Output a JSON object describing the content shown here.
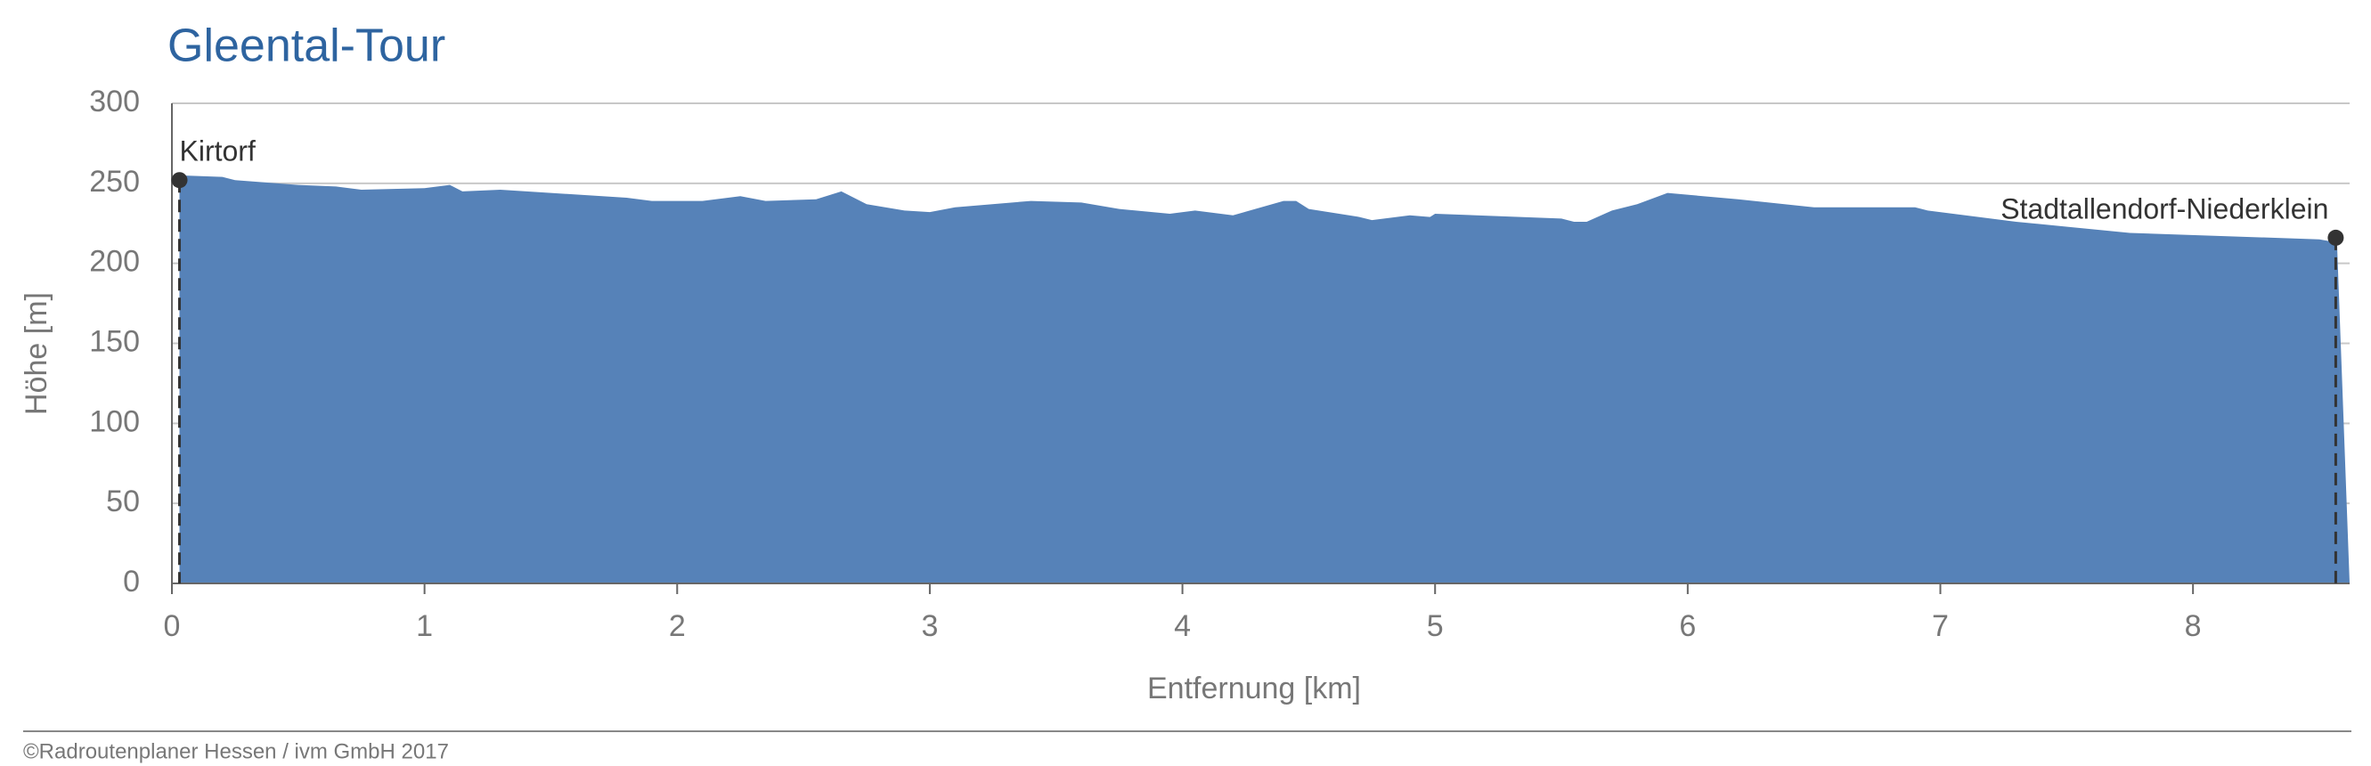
{
  "chart_data": {
    "type": "area",
    "title": "Gleental-Tour",
    "x_label": "Entfernung [km]",
    "y_label": "Höhe [m]",
    "x": [
      0.03,
      0.2,
      0.25,
      0.5,
      0.65,
      0.75,
      1.0,
      1.1,
      1.15,
      1.3,
      1.5,
      1.8,
      1.9,
      2.1,
      2.25,
      2.35,
      2.55,
      2.65,
      2.75,
      2.9,
      3.0,
      3.1,
      3.4,
      3.6,
      3.75,
      3.95,
      4.05,
      4.2,
      4.4,
      4.45,
      4.5,
      4.7,
      4.75,
      4.9,
      4.98,
      5.0,
      5.5,
      5.55,
      5.6,
      5.7,
      5.8,
      5.92,
      6.2,
      6.5,
      6.9,
      6.95,
      7.3,
      7.75,
      8.5,
      8.57,
      8.62
    ],
    "values": [
      255,
      254,
      252,
      249,
      248,
      246,
      247,
      249,
      245,
      246,
      244,
      241,
      239,
      239,
      242,
      239,
      240,
      245,
      237,
      233,
      232,
      235,
      239,
      238,
      234,
      231,
      233,
      230,
      239,
      239,
      234,
      229,
      227,
      230,
      229,
      231,
      228,
      226,
      226,
      233,
      237,
      244,
      240,
      235,
      235,
      233,
      226,
      219,
      215,
      213,
      0
    ],
    "color": "#5682b8",
    "xlim": [
      0,
      8.62
    ],
    "xticks": [
      0,
      1,
      2,
      3,
      4,
      5,
      6,
      7,
      8
    ],
    "ylim": [
      0,
      300
    ],
    "yticks": [
      0,
      50,
      100,
      150,
      200,
      250,
      300
    ],
    "grid": true,
    "annotations": [
      {
        "text": "Kirtorf",
        "x": 0.03,
        "y": 252
      },
      {
        "text": "Stadtallendorf-Niederklein",
        "x": 8.565,
        "y": 216
      }
    ],
    "footer": "©Radroutenplaner Hessen / ivm GmbH 2017"
  }
}
